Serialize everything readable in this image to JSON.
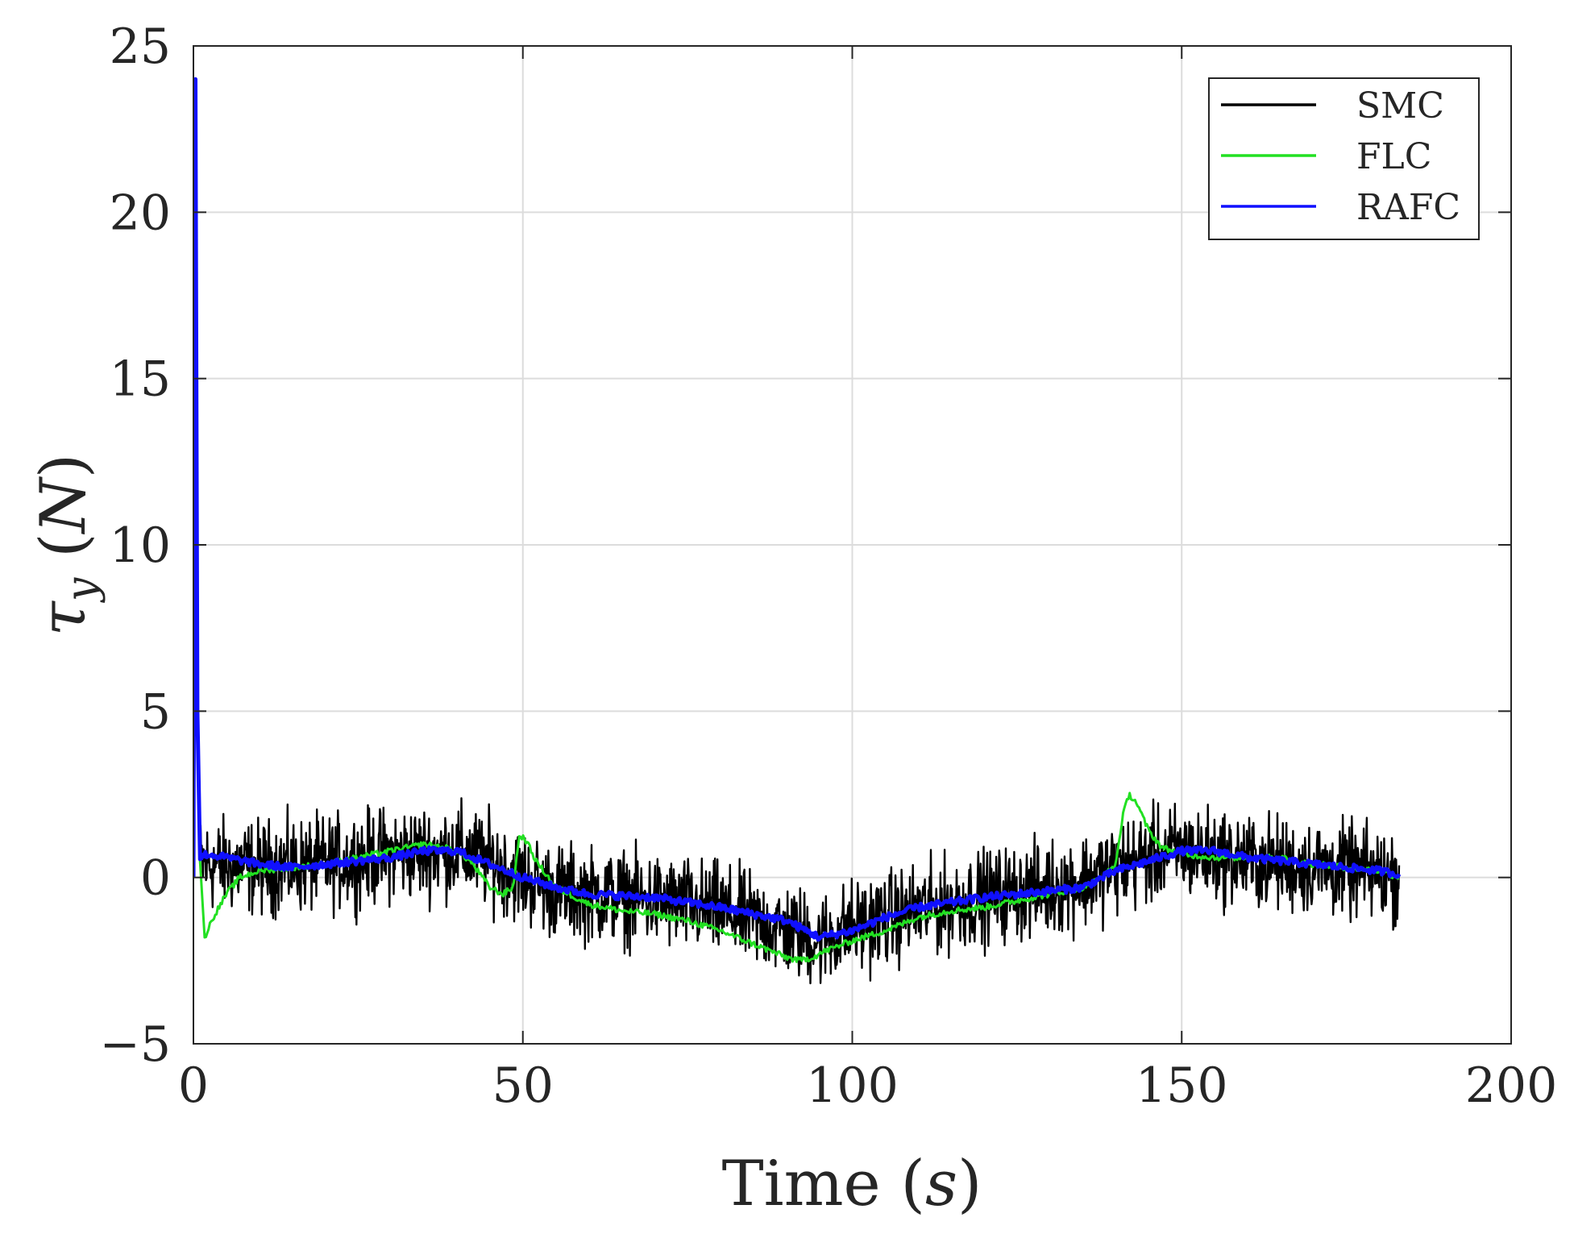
{
  "chart_data": {
    "type": "line",
    "xlabel_word": "Time",
    "xlabel_unit": "s",
    "ylabel_symbol": "τ",
    "ylabel_subscript": "y",
    "ylabel_unit": "N",
    "xlim": [
      0,
      200
    ],
    "ylim": [
      -5,
      25
    ],
    "xticks": [
      "0",
      "50",
      "100",
      "150",
      "200"
    ],
    "yticks": [
      "−5",
      "0",
      "5",
      "10",
      "15",
      "20",
      "25"
    ],
    "grid": true,
    "legend_position": "top-right",
    "colors": {
      "SMC": "#000000",
      "FLC": "#22e022",
      "RAFC": "#1010ff"
    },
    "series": [
      {
        "name": "SMC",
        "style": "noisy",
        "noise_amplitude": 1.2,
        "x": [
          0,
          0.3,
          0.6,
          1.0,
          2,
          10,
          20,
          30,
          40,
          45,
          50,
          55,
          60,
          70,
          80,
          90,
          95,
          100,
          110,
          120,
          130,
          135,
          140,
          145,
          150,
          160,
          170,
          180,
          183
        ],
        "y": [
          0,
          24,
          4,
          0.4,
          0.4,
          0.3,
          0.4,
          0.7,
          0.8,
          0.5,
          0.0,
          -0.4,
          -0.5,
          -0.7,
          -1.0,
          -1.6,
          -1.9,
          -1.5,
          -1.0,
          -0.6,
          -0.3,
          -0.1,
          0.3,
          0.6,
          0.8,
          0.5,
          0.3,
          0.1,
          0.0
        ]
      },
      {
        "name": "FLC",
        "style": "smooth",
        "x": [
          0,
          0.3,
          0.6,
          1,
          1.7,
          3,
          5,
          7,
          10,
          15,
          20,
          25,
          30,
          35,
          38,
          40,
          42,
          45,
          47,
          48.5,
          49.5,
          50.5,
          52,
          55,
          60,
          65,
          70,
          75,
          80,
          85,
          90,
          92,
          94,
          96,
          100,
          105,
          110,
          115,
          120,
          125,
          130,
          135,
          138,
          140,
          141,
          142,
          143,
          145,
          147,
          150,
          155,
          160,
          165,
          170,
          175,
          180,
          183
        ],
        "y": [
          0,
          24,
          5,
          0.5,
          -1.8,
          -1.2,
          -0.5,
          0.0,
          0.2,
          0.3,
          0.4,
          0.6,
          0.8,
          1.0,
          0.9,
          0.8,
          0.5,
          -0.3,
          -0.5,
          -0.3,
          1.3,
          1.1,
          0.5,
          -0.3,
          -0.8,
          -1.0,
          -1.1,
          -1.3,
          -1.6,
          -2.0,
          -2.4,
          -2.5,
          -2.4,
          -2.2,
          -1.9,
          -1.6,
          -1.2,
          -1.0,
          -0.9,
          -0.7,
          -0.5,
          -0.3,
          0.0,
          0.4,
          1.8,
          2.5,
          2.3,
          1.4,
          0.9,
          0.7,
          0.6,
          0.6,
          0.6,
          0.4,
          0.3,
          0.2,
          0.0
        ]
      },
      {
        "name": "RAFC",
        "style": "thick",
        "x": [
          0,
          0.3,
          0.6,
          1,
          2,
          5,
          10,
          15,
          20,
          30,
          35,
          40,
          45,
          50,
          55,
          60,
          70,
          80,
          90,
          95,
          100,
          105,
          110,
          120,
          130,
          135,
          140,
          145,
          150,
          155,
          160,
          170,
          180,
          183
        ],
        "y": [
          0,
          24,
          5,
          0.6,
          0.7,
          0.6,
          0.4,
          0.3,
          0.4,
          0.6,
          0.8,
          0.8,
          0.4,
          0.0,
          -0.3,
          -0.5,
          -0.6,
          -0.9,
          -1.3,
          -1.8,
          -1.6,
          -1.2,
          -0.9,
          -0.6,
          -0.4,
          -0.3,
          0.2,
          0.5,
          0.8,
          0.8,
          0.6,
          0.4,
          0.2,
          0.1
        ]
      }
    ]
  }
}
